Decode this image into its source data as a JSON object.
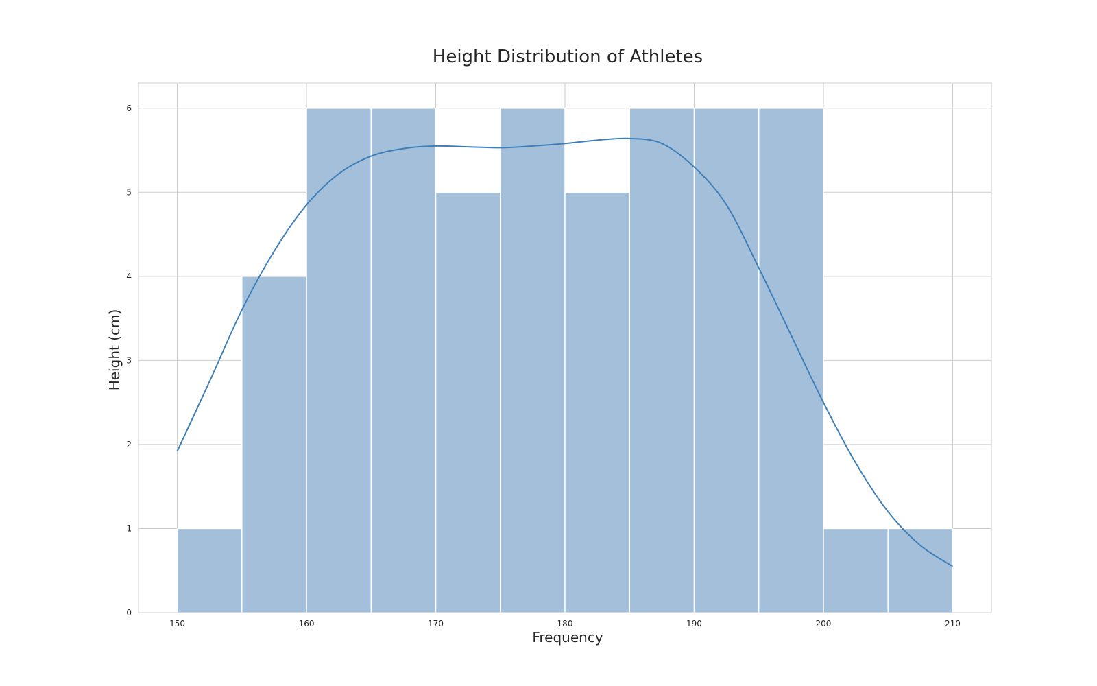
{
  "chart_data": {
    "type": "bar",
    "title": "Height Distribution of Athletes",
    "xlabel": "Frequency",
    "ylabel": "Height (cm)",
    "xlim": [
      147,
      213
    ],
    "ylim": [
      0,
      6.3
    ],
    "xticks": [
      150,
      160,
      170,
      180,
      190,
      200,
      210
    ],
    "yticks": [
      0,
      1,
      2,
      3,
      4,
      5,
      6
    ],
    "grid": true,
    "bin_edges": [
      150,
      155,
      160,
      165,
      170,
      175,
      180,
      185,
      190,
      195,
      200,
      205,
      210
    ],
    "counts": [
      1,
      4,
      6,
      6,
      5,
      6,
      5,
      6,
      6,
      6,
      1,
      1
    ],
    "kde_x": [
      150,
      152.5,
      155,
      157.5,
      160,
      162.5,
      165,
      167.5,
      170,
      172.5,
      175,
      177.5,
      180,
      182.5,
      185,
      187.5,
      190,
      192.5,
      195,
      197.5,
      200,
      202.5,
      205,
      207.5,
      210
    ],
    "kde_y": [
      1.92,
      2.75,
      3.6,
      4.3,
      4.85,
      5.22,
      5.43,
      5.52,
      5.55,
      5.54,
      5.53,
      5.55,
      5.58,
      5.62,
      5.64,
      5.58,
      5.3,
      4.85,
      4.1,
      3.3,
      2.5,
      1.78,
      1.2,
      0.8,
      0.55
    ],
    "colors": {
      "bar_fill": "#a3bfda",
      "kde_line": "#3f7fb8"
    }
  }
}
